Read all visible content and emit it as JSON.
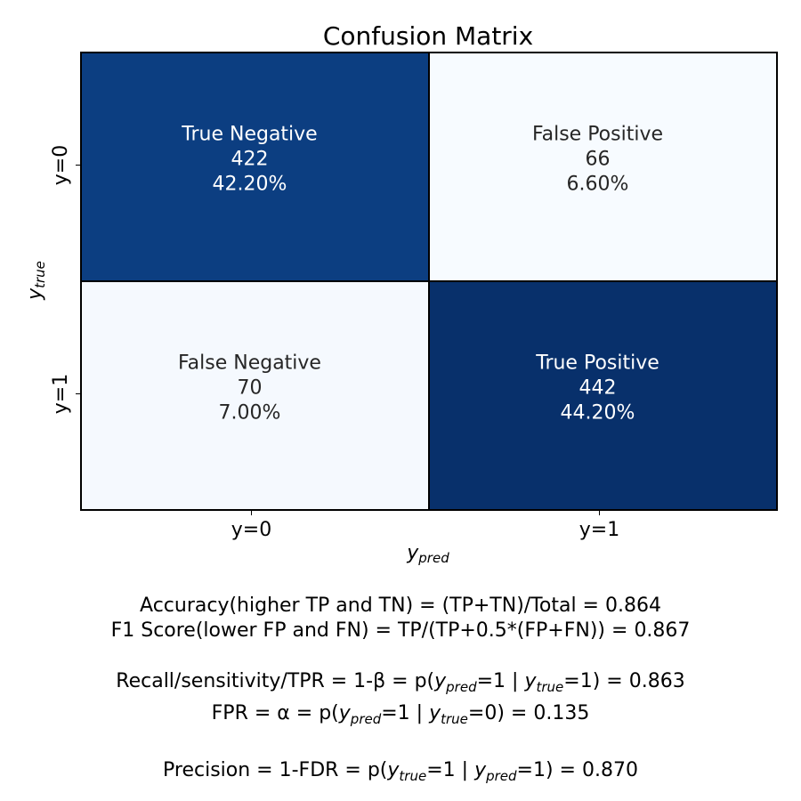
{
  "chart_data": {
    "type": "heatmap",
    "title": "Confusion Matrix",
    "xlabel": "y_pred",
    "ylabel": "y_true",
    "x_categories": [
      "y=0",
      "y=1"
    ],
    "y_categories": [
      "y=0",
      "y=1"
    ],
    "colormap": "Blues",
    "colorbar": false,
    "cells": [
      {
        "row": 0,
        "col": 0,
        "name": "True Negative",
        "count": 422,
        "percent": "42.20%",
        "color": "#0c3e81",
        "text_color": "#ffffff"
      },
      {
        "row": 0,
        "col": 1,
        "name": "False Positive",
        "count": 66,
        "percent": "6.60%",
        "color": "#f7fbff",
        "text_color": "#262626"
      },
      {
        "row": 1,
        "col": 0,
        "name": "False Negative",
        "count": 70,
        "percent": "7.00%",
        "color": "#f5f9fe",
        "text_color": "#262626"
      },
      {
        "row": 1,
        "col": 1,
        "name": "True Positive",
        "count": 442,
        "percent": "44.20%",
        "color": "#08306b",
        "text_color": "#ffffff"
      }
    ]
  },
  "metrics": {
    "accuracy_label": "Accuracy(higher TP and TN) = (TP+TN)/Total = ",
    "accuracy_value": "0.864",
    "f1_label": "F1 Score(lower FP and FN) = TP/(TP+0.5*(FP+FN)) = ",
    "f1_value": "0.867",
    "recall_label": "Recall/sensitivity/TPR = 1-β = p(",
    "recall_value": "0.863",
    "fpr_label": "FPR = α = p(",
    "fpr_value": "0.135",
    "precision_label": "Precision = 1-FDR = p(",
    "precision_value": "0.870"
  }
}
